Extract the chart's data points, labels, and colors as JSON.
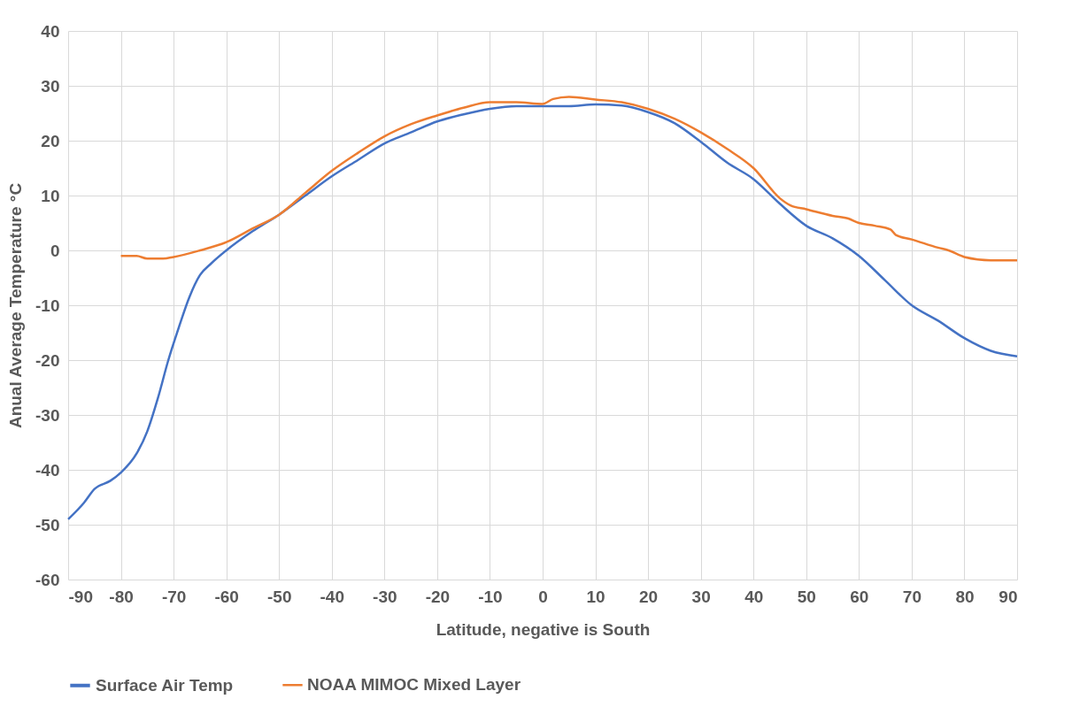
{
  "chart_data": {
    "type": "line",
    "xlabel": "Latitude, negative is South",
    "ylabel": "Anual Average Temperature °C",
    "xlim": [
      -90,
      90
    ],
    "xticks": [
      -90,
      -80,
      -70,
      -60,
      -50,
      -40,
      -30,
      -20,
      -10,
      0,
      10,
      20,
      30,
      40,
      50,
      60,
      70,
      80,
      90
    ],
    "ylim": [
      -60,
      40
    ],
    "yticks": [
      -60,
      -50,
      -40,
      -30,
      -20,
      -10,
      0,
      10,
      20,
      30,
      40
    ],
    "grid": true,
    "legend": "bottom",
    "marker": "none",
    "line_style": "solid",
    "series": [
      {
        "name": "Surface Air Temp",
        "color": "#4472c4",
        "x": [
          -90,
          -87,
          -85,
          -82,
          -80,
          -77,
          -75,
          -73,
          -71,
          -69,
          -67,
          -65,
          -63,
          -60,
          -55,
          -50,
          -45,
          -40,
          -35,
          -30,
          -25,
          -20,
          -15,
          -10,
          -5,
          0,
          5,
          10,
          15,
          20,
          25,
          30,
          35,
          40,
          45,
          50,
          55,
          60,
          65,
          70,
          75,
          80,
          85,
          90
        ],
        "values": [
          -49,
          -46,
          -43.5,
          -42,
          -40.5,
          -37,
          -33,
          -27,
          -20,
          -14,
          -8.5,
          -4.5,
          -2.5,
          0,
          3.5,
          6.5,
          10,
          13.5,
          16.5,
          19.5,
          21.5,
          23.5,
          24.8,
          25.8,
          26.3,
          26.3,
          26.3,
          26.6,
          26.4,
          25.2,
          23.2,
          19.8,
          16,
          13,
          8.5,
          4.5,
          2.2,
          -1,
          -5.5,
          -10,
          -12.8,
          -16,
          -18.3,
          -19.3
        ]
      },
      {
        "name": "NOAA MIMOC Mixed Layer",
        "color": "#ed7d31",
        "x": [
          -80,
          -77,
          -75,
          -72,
          -70,
          -65,
          -60,
          -55,
          -50,
          -45,
          -40,
          -35,
          -30,
          -25,
          -20,
          -15,
          -10,
          -5,
          0,
          2,
          5,
          10,
          15,
          20,
          25,
          30,
          35,
          40,
          45,
          47,
          50,
          55,
          58,
          60,
          63,
          66,
          67,
          70,
          75,
          77,
          80,
          85,
          90
        ],
        "values": [
          -1,
          -1,
          -1.5,
          -1.5,
          -1.2,
          0,
          1.5,
          4,
          6.5,
          10.5,
          14.5,
          17.8,
          20.8,
          23,
          24.6,
          26,
          27,
          27,
          26.7,
          27.6,
          28,
          27.5,
          27,
          25.8,
          24,
          21.5,
          18.5,
          15,
          9.5,
          8.2,
          7.5,
          6.3,
          5.8,
          5,
          4.5,
          3.8,
          2.8,
          2,
          0.5,
          0,
          -1.2,
          -1.8,
          -1.8
        ]
      }
    ]
  }
}
